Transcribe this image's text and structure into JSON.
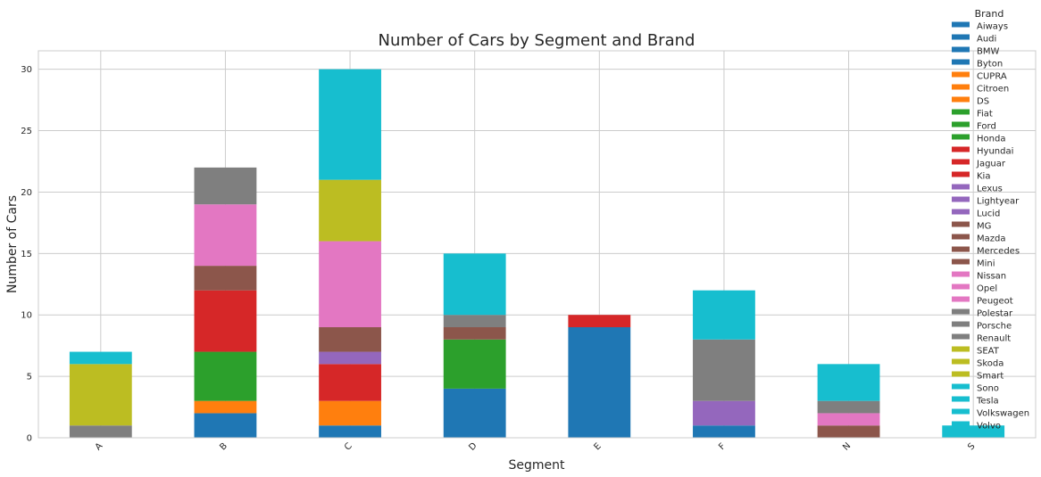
{
  "chart_data": {
    "type": "bar",
    "stacked": true,
    "title": "Number of Cars by Segment and Brand",
    "xlabel": "Segment",
    "ylabel": "Number of Cars",
    "categories": [
      "A",
      "B",
      "C",
      "D",
      "E",
      "F",
      "N",
      "S"
    ],
    "ylim": [
      0,
      31.5
    ],
    "yticks": [
      0,
      5,
      10,
      15,
      20,
      25,
      30
    ],
    "grid": true,
    "legend": {
      "title": "Brand",
      "placement": "right"
    },
    "series": [
      {
        "name": "Aiways",
        "color": "#1f77b4",
        "values": [
          0,
          0,
          0,
          0,
          0,
          0,
          0,
          0
        ]
      },
      {
        "name": "Audi",
        "color": "#1f77b4",
        "values": [
          0,
          0,
          0,
          4,
          9,
          1,
          0,
          0
        ]
      },
      {
        "name": "BMW",
        "color": "#1f77b4",
        "values": [
          0,
          2,
          1,
          0,
          0,
          0,
          0,
          0
        ]
      },
      {
        "name": "Byton",
        "color": "#1f77b4",
        "values": [
          0,
          0,
          0,
          0,
          0,
          0,
          0,
          0
        ]
      },
      {
        "name": "CUPRA",
        "color": "#ff7f0e",
        "values": [
          0,
          0,
          0,
          0,
          0,
          0,
          0,
          0
        ]
      },
      {
        "name": "Citroen",
        "color": "#ff7f0e",
        "values": [
          0,
          1,
          2,
          0,
          0,
          0,
          0,
          0
        ]
      },
      {
        "name": "DS",
        "color": "#ff7f0e",
        "values": [
          0,
          0,
          0,
          0,
          0,
          0,
          0,
          0
        ]
      },
      {
        "name": "Fiat",
        "color": "#2ca02c",
        "values": [
          0,
          0,
          0,
          0,
          0,
          0,
          0,
          0
        ]
      },
      {
        "name": "Ford",
        "color": "#2ca02c",
        "values": [
          0,
          4,
          0,
          4,
          0,
          0,
          0,
          0
        ]
      },
      {
        "name": "Honda",
        "color": "#2ca02c",
        "values": [
          0,
          0,
          0,
          0,
          0,
          0,
          0,
          0
        ]
      },
      {
        "name": "Hyundai",
        "color": "#d62728",
        "values": [
          0,
          5,
          3,
          0,
          1,
          0,
          0,
          0
        ]
      },
      {
        "name": "Jaguar",
        "color": "#d62728",
        "values": [
          0,
          0,
          0,
          0,
          0,
          0,
          0,
          0
        ]
      },
      {
        "name": "Kia",
        "color": "#d62728",
        "values": [
          0,
          0,
          0,
          0,
          0,
          0,
          0,
          0
        ]
      },
      {
        "name": "Lexus",
        "color": "#9467bd",
        "values": [
          0,
          0,
          1,
          0,
          0,
          2,
          0,
          0
        ]
      },
      {
        "name": "Lightyear",
        "color": "#9467bd",
        "values": [
          0,
          0,
          0,
          0,
          0,
          0,
          0,
          0
        ]
      },
      {
        "name": "Lucid",
        "color": "#9467bd",
        "values": [
          0,
          0,
          0,
          0,
          0,
          0,
          0,
          0
        ]
      },
      {
        "name": "MG",
        "color": "#8c564b",
        "values": [
          0,
          2,
          2,
          1,
          0,
          0,
          1,
          0
        ]
      },
      {
        "name": "Mazda",
        "color": "#8c564b",
        "values": [
          0,
          0,
          0,
          0,
          0,
          0,
          0,
          0
        ]
      },
      {
        "name": "Mercedes",
        "color": "#8c564b",
        "values": [
          0,
          0,
          0,
          0,
          0,
          0,
          0,
          0
        ]
      },
      {
        "name": "Mini",
        "color": "#8c564b",
        "values": [
          0,
          0,
          0,
          0,
          0,
          0,
          0,
          0
        ]
      },
      {
        "name": "Nissan",
        "color": "#e377c2",
        "values": [
          0,
          5,
          7,
          0,
          0,
          0,
          1,
          0
        ]
      },
      {
        "name": "Opel",
        "color": "#e377c2",
        "values": [
          0,
          0,
          0,
          0,
          0,
          0,
          0,
          0
        ]
      },
      {
        "name": "Peugeot",
        "color": "#e377c2",
        "values": [
          0,
          0,
          0,
          0,
          0,
          0,
          0,
          0
        ]
      },
      {
        "name": "Polestar",
        "color": "#7f7f7f",
        "values": [
          1,
          3,
          0,
          1,
          0,
          5,
          1,
          0
        ]
      },
      {
        "name": "Porsche",
        "color": "#7f7f7f",
        "values": [
          0,
          0,
          0,
          0,
          0,
          0,
          0,
          0
        ]
      },
      {
        "name": "Renault",
        "color": "#7f7f7f",
        "values": [
          0,
          0,
          0,
          0,
          0,
          0,
          0,
          0
        ]
      },
      {
        "name": "SEAT",
        "color": "#bcbd22",
        "values": [
          5,
          0,
          5,
          0,
          0,
          0,
          0,
          0
        ]
      },
      {
        "name": "Skoda",
        "color": "#bcbd22",
        "values": [
          0,
          0,
          0,
          0,
          0,
          0,
          0,
          0
        ]
      },
      {
        "name": "Smart",
        "color": "#bcbd22",
        "values": [
          0,
          0,
          0,
          0,
          0,
          0,
          0,
          0
        ]
      },
      {
        "name": "Sono",
        "color": "#17becf",
        "values": [
          1,
          0,
          9,
          5,
          0,
          4,
          3,
          1
        ]
      },
      {
        "name": "Tesla",
        "color": "#17becf",
        "values": [
          0,
          0,
          0,
          0,
          0,
          0,
          0,
          0
        ]
      },
      {
        "name": "Volkswagen",
        "color": "#17becf",
        "values": [
          0,
          0,
          0,
          0,
          0,
          0,
          0,
          0
        ]
      },
      {
        "name": "Volvo",
        "color": "#17becf",
        "values": [
          0,
          0,
          0,
          0,
          0,
          0,
          0,
          0
        ]
      }
    ]
  }
}
